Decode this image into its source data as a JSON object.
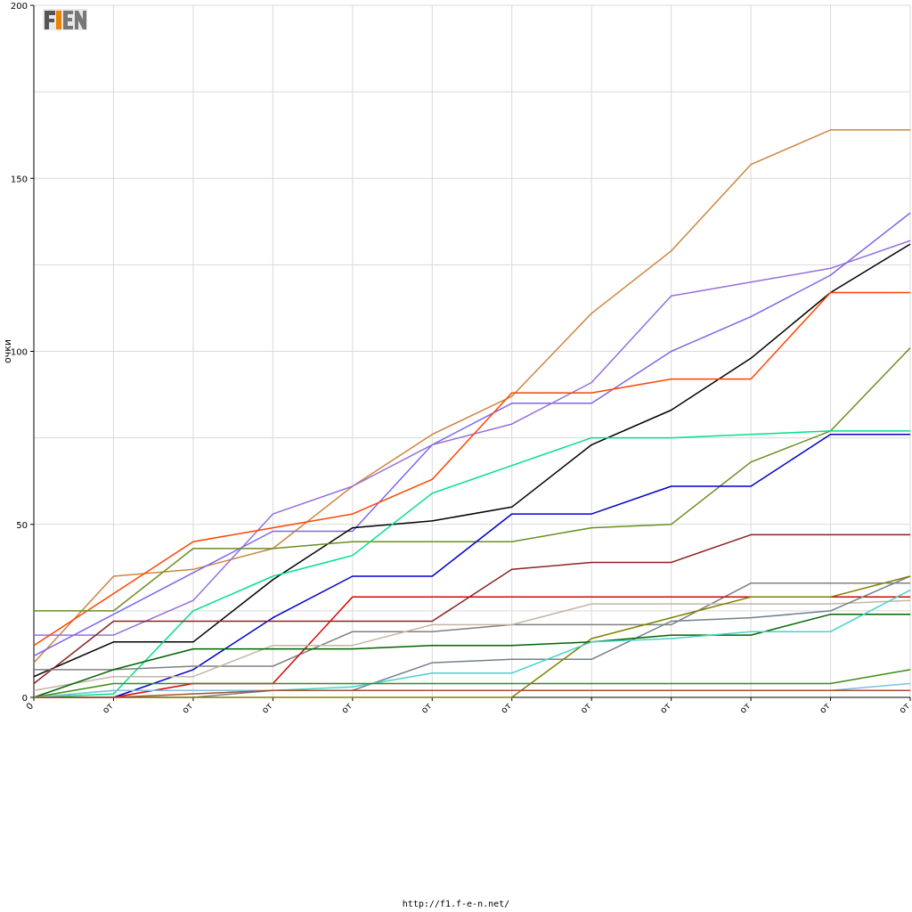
{
  "chart_data": {
    "type": "line",
    "title": "",
    "xlabel": "",
    "ylabel": "очки",
    "ylim": [
      0,
      200
    ],
    "yticks": [
      0,
      50,
      100,
      150,
      200
    ],
    "x": [
      0,
      1,
      2,
      3,
      4,
      5,
      6,
      7,
      8,
      9,
      10,
      11
    ],
    "xtick_labels": [
      "0",
      "от",
      "от",
      "от",
      "от",
      "от",
      "от",
      "от",
      "от",
      "от",
      "от",
      "от"
    ],
    "grid": true,
    "series": [
      {
        "color": "#cd853f",
        "values": [
          10,
          35,
          37,
          43,
          61,
          76,
          87,
          111,
          129,
          154,
          164,
          164
        ]
      },
      {
        "color": "#7b68ee",
        "values": [
          12,
          24,
          36,
          48,
          48,
          73,
          85,
          85,
          100,
          110,
          122,
          140
        ]
      },
      {
        "color": "#9370db",
        "values": [
          18,
          18,
          28,
          53,
          61,
          73,
          79,
          91,
          116,
          120,
          124,
          132
        ]
      },
      {
        "color": "#000000",
        "values": [
          6,
          16,
          16,
          34,
          49,
          51,
          55,
          73,
          83,
          98,
          117,
          131
        ]
      },
      {
        "color": "#ff4500",
        "values": [
          15,
          30,
          45,
          49,
          53,
          63,
          88,
          88,
          92,
          92,
          117,
          117
        ]
      },
      {
        "color": "#6b8e23",
        "values": [
          25,
          25,
          43,
          43,
          45,
          45,
          45,
          49,
          50,
          68,
          77,
          101
        ]
      },
      {
        "color": "#00e08a",
        "values": [
          0,
          1,
          25,
          35,
          41,
          59,
          67,
          75,
          75,
          76,
          77,
          77
        ]
      },
      {
        "color": "#0000cd",
        "values": [
          0,
          0,
          8,
          23,
          35,
          35,
          53,
          53,
          61,
          61,
          76,
          76
        ]
      },
      {
        "color": "#8b2222",
        "values": [
          4,
          22,
          22,
          22,
          22,
          22,
          37,
          39,
          39,
          47,
          47,
          47
        ]
      },
      {
        "color": "#808080",
        "values": [
          8,
          8,
          9,
          9,
          19,
          19,
          21,
          21,
          21,
          33,
          33,
          33
        ]
      },
      {
        "color": "#dd0000",
        "values": [
          0,
          0,
          4,
          4,
          29,
          29,
          29,
          29,
          29,
          29,
          29,
          29
        ]
      },
      {
        "color": "#c4b5a5",
        "values": [
          2,
          6,
          6,
          15,
          15,
          21,
          21,
          27,
          27,
          27,
          27,
          28
        ]
      },
      {
        "color": "#708090",
        "values": [
          0,
          0,
          0,
          2,
          2,
          10,
          11,
          11,
          22,
          23,
          25,
          35
        ]
      },
      {
        "color": "#808000",
        "values": [
          0,
          0,
          0,
          0,
          0,
          0,
          0,
          17,
          23,
          29,
          29,
          35
        ]
      },
      {
        "color": "#006400",
        "values": [
          0,
          8,
          14,
          14,
          14,
          15,
          15,
          16,
          18,
          18,
          24,
          24
        ]
      },
      {
        "color": "#48d1cc",
        "values": [
          0,
          2,
          2,
          2,
          3,
          7,
          7,
          16,
          17,
          19,
          19,
          31
        ]
      },
      {
        "color": "#3c8c10",
        "values": [
          0,
          4,
          4,
          4,
          4,
          4,
          4,
          4,
          4,
          4,
          4,
          8
        ]
      },
      {
        "color": "#7fbfdf",
        "values": [
          0,
          2,
          2,
          2,
          2,
          2,
          2,
          2,
          2,
          2,
          2,
          4
        ]
      },
      {
        "color": "#a0522d",
        "values": [
          0,
          0,
          1,
          2,
          2,
          2,
          2,
          2,
          2,
          2,
          2,
          2
        ]
      }
    ]
  },
  "logo": {
    "text": "F1EN"
  },
  "footer": {
    "url": "http://f1.f-e-n.net/"
  }
}
